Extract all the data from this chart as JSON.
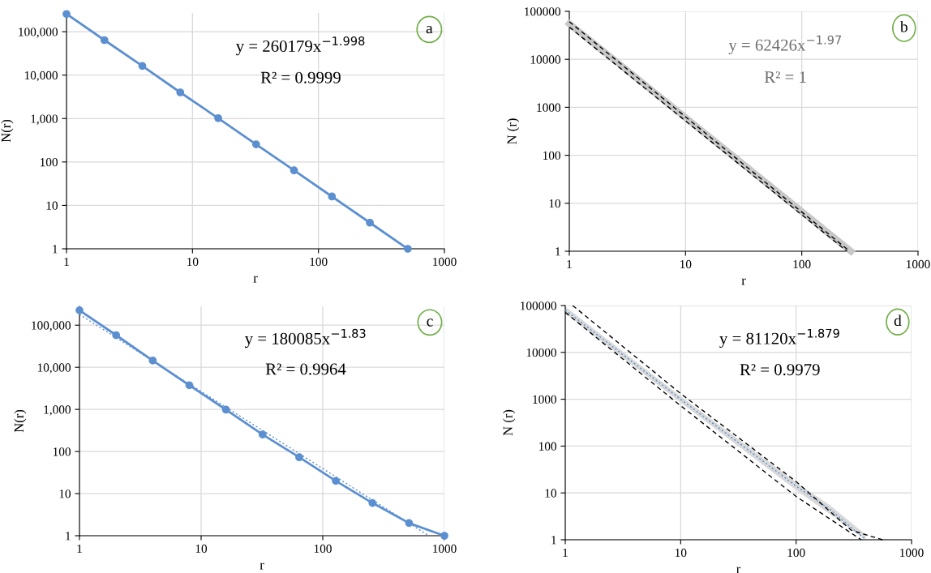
{
  "chart_data": [
    {
      "type": "line",
      "xlabel": "r",
      "ylabel": "N(r)",
      "log": "xy",
      "grid": true,
      "xlim": [
        1,
        1000
      ],
      "ylim": [
        1,
        270000
      ],
      "xticks": [
        1,
        10,
        100,
        1000
      ],
      "yticks": [
        1,
        10,
        100,
        {
          "value": 1000,
          "label": "1,000"
        },
        {
          "value": 10000,
          "label": "10,000"
        },
        {
          "value": 100000,
          "label": "100,000"
        }
      ],
      "annotations": [
        "y = 260179x$^{−1.998}$",
        "R² = 0.9999",
        "a"
      ],
      "series": [
        {
          "color": "#5b8fd0",
          "marker": "circle",
          "line_style": "solid",
          "x": [
            1,
            2,
            4,
            8,
            16,
            32,
            64,
            128,
            256,
            512
          ],
          "values": [
            256000,
            64000,
            16300,
            4000,
            1020,
            255,
            64,
            16,
            4,
            1
          ]
        }
      ]
    },
    {
      "type": "line",
      "xlabel": "r",
      "ylabel": "N (r)",
      "log": "xy",
      "grid": true,
      "xlim": [
        1,
        1000
      ],
      "ylim": [
        1,
        100000
      ],
      "xticks": [
        1,
        10,
        100,
        1000
      ],
      "yticks": [
        1,
        10,
        100,
        1000,
        10000,
        100000
      ],
      "annotations": [
        "y = 62426x$^{−1.97}$",
        "R² = 1",
        "b"
      ],
      "series": [
        {
          "color": "#c8c8c8",
          "marker": "none",
          "line_style": "solid",
          "x": [
            1,
            265
          ],
          "values": [
            55000,
            1
          ]
        },
        {
          "color": "#000000",
          "marker": "none",
          "line_style": "dashed",
          "x": [
            1,
            258
          ],
          "values": [
            61000,
            1
          ]
        },
        {
          "color": "#000000",
          "marker": "none",
          "line_style": "dashed",
          "x": [
            1,
            245
          ],
          "values": [
            47000,
            1
          ]
        }
      ]
    },
    {
      "type": "line",
      "xlabel": "r",
      "ylabel": "N(r)",
      "log": "xy",
      "grid": true,
      "xlim": [
        1,
        1000
      ],
      "ylim": [
        1,
        280000
      ],
      "xticks": [
        1,
        10,
        100,
        1000
      ],
      "yticks": [
        1,
        10,
        100,
        {
          "value": 1000,
          "label": "1,000"
        },
        {
          "value": 10000,
          "label": "10,000"
        },
        {
          "value": 100000,
          "label": "100,000"
        }
      ],
      "annotations": [
        "y = 180085x$^{−1.83}$",
        "R² = 0.9964",
        "c"
      ],
      "series": [
        {
          "color": "#5b8fd0",
          "marker": "circle",
          "line_style": "solid",
          "x": [
            1,
            2,
            4,
            8,
            16,
            32,
            64,
            128,
            256,
            512,
            1000
          ],
          "values": [
            226000,
            58000,
            14500,
            3750,
            985,
            254,
            73,
            20,
            6,
            2,
            1
          ]
        },
        {
          "color": "#5b8fd0",
          "marker": "none",
          "line_style": "dotted",
          "x": [
            1,
            744
          ],
          "values": [
            180085,
            1
          ]
        }
      ]
    },
    {
      "type": "line",
      "xlabel": "r",
      "ylabel": "N (r)",
      "log": "xy",
      "grid": true,
      "xlim": [
        1,
        1000
      ],
      "ylim": [
        1,
        100000
      ],
      "xticks": [
        1,
        10,
        100,
        1000
      ],
      "yticks": [
        1,
        10,
        100,
        1000,
        10000,
        100000
      ],
      "annotations": [
        "y = 81120x$^{−1.879}$",
        "R² = 0.9979",
        "d"
      ],
      "series": [
        {
          "color": "#5b8fd0",
          "marker": "none",
          "line_style": "dotted",
          "x": [
            1,
            10,
            100,
            200,
            400
          ],
          "values": [
            80000,
            1000,
            14,
            4.3,
            1
          ],
          "lower": [
            68000,
            850,
            11.5,
            3.4,
            1
          ],
          "upper": [
            95000,
            1150,
            17,
            5.3,
            1.3
          ]
        },
        {
          "color": "#000000",
          "marker": "none",
          "line_style": "dashed",
          "x": [
            1.16,
            10,
            100,
            300,
            560
          ],
          "values": [
            100000,
            1320,
            17.5,
            1.6,
            1
          ]
        },
        {
          "color": "#000000",
          "marker": "none",
          "line_style": "dashed",
          "x": [
            1,
            10,
            100,
            367
          ],
          "values": [
            71600,
            725,
            8.4,
            1
          ]
        }
      ]
    }
  ]
}
